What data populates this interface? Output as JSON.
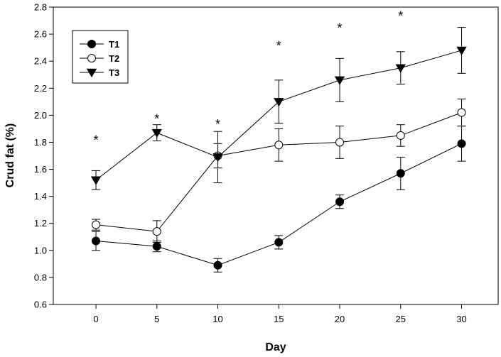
{
  "chart_data": {
    "type": "line",
    "xlabel": "Day",
    "ylabel": "Crud fat (%)",
    "xlim": [
      -3.5,
      33
    ],
    "ylim": [
      0.6,
      2.8
    ],
    "x_ticks": [
      "0",
      "5",
      "10",
      "15",
      "20",
      "25",
      "30"
    ],
    "y_ticks": [
      "0.6",
      "0.8",
      "1.0",
      "1.2",
      "1.4",
      "1.6",
      "1.8",
      "2.0",
      "2.2",
      "2.4",
      "2.6",
      "2.8"
    ],
    "x": [
      0,
      5,
      10,
      15,
      20,
      25,
      30
    ],
    "grid": false,
    "legend_position": "top-left",
    "series": [
      {
        "name": "T1",
        "marker": "filled-circle",
        "values": [
          1.07,
          1.03,
          0.89,
          1.06,
          1.36,
          1.57,
          1.79
        ],
        "errors": [
          0.07,
          0.04,
          0.05,
          0.05,
          0.05,
          0.12,
          0.13
        ]
      },
      {
        "name": "T2",
        "marker": "open-circle",
        "values": [
          1.19,
          1.14,
          1.7,
          1.78,
          1.8,
          1.85,
          2.02
        ],
        "errors": [
          0.04,
          0.08,
          0.09,
          0.12,
          0.12,
          0.08,
          0.1
        ]
      },
      {
        "name": "T3",
        "marker": "filled-triangle-down",
        "values": [
          1.52,
          1.87,
          1.69,
          2.1,
          2.26,
          2.35,
          2.48
        ],
        "errors": [
          0.07,
          0.06,
          0.19,
          0.16,
          0.16,
          0.12,
          0.17
        ]
      }
    ],
    "significance": [
      {
        "x": 0,
        "y": 1.83,
        "label": "*"
      },
      {
        "x": 5,
        "y": 1.99,
        "label": "*"
      },
      {
        "x": 10,
        "y": 1.95,
        "label": "*"
      },
      {
        "x": 15,
        "y": 2.53,
        "label": "*"
      },
      {
        "x": 20,
        "y": 2.66,
        "label": "*"
      },
      {
        "x": 25,
        "y": 2.75,
        "label": "*"
      }
    ]
  }
}
